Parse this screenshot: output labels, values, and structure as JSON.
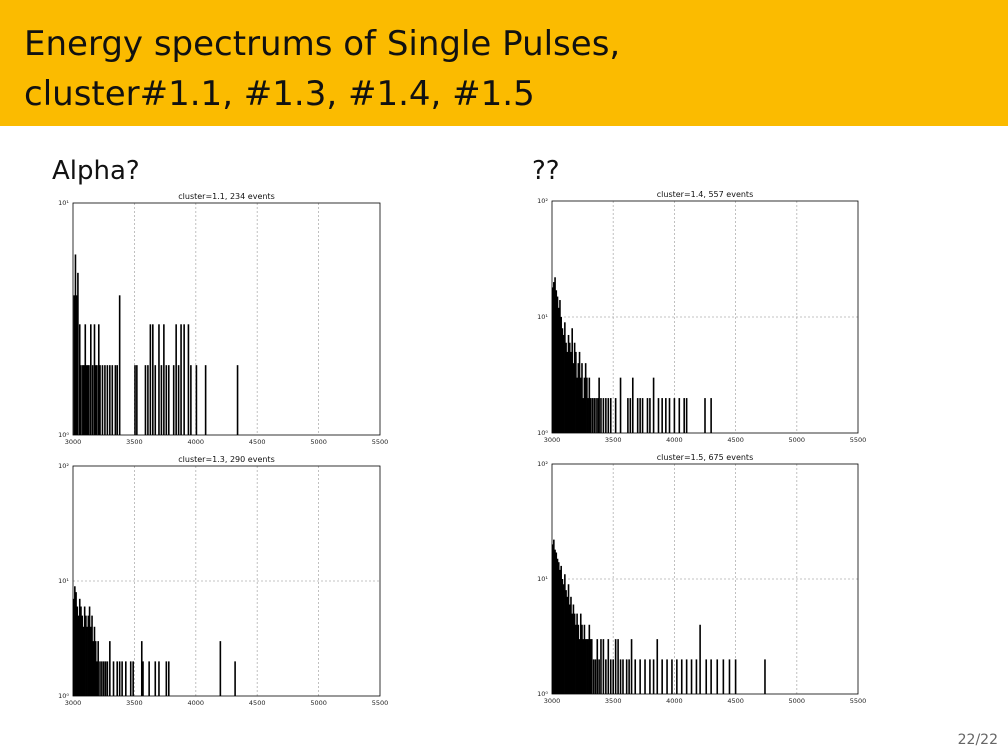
{
  "slide": {
    "title_line1": "Energy spectrums of Single Pulses,",
    "title_line2": "cluster#1.1, #1.3, #1.4, #1.5",
    "label_left": "Alpha?",
    "label_right": "??",
    "page_number": "22/22"
  },
  "colors": {
    "title_bar": "#fbbb00",
    "bars": "#000000",
    "grid": "#b0b0b0"
  },
  "chart_data": [
    {
      "type": "bar",
      "title": "cluster=1.1, 234 events",
      "x_ticks": [
        "3000",
        "3500",
        "4000",
        "4500",
        "5000",
        "5500"
      ],
      "xlim": [
        3000,
        5500
      ],
      "yscale": "log",
      "ylim": [
        1,
        10
      ],
      "y_ticks": [
        "10⁰",
        "10¹"
      ],
      "grid": true,
      "bins": [
        [
          3010,
          4
        ],
        [
          3020,
          6
        ],
        [
          3030,
          4
        ],
        [
          3040,
          5
        ],
        [
          3055,
          3
        ],
        [
          3065,
          2
        ],
        [
          3080,
          2
        ],
        [
          3090,
          2
        ],
        [
          3100,
          3
        ],
        [
          3110,
          2
        ],
        [
          3120,
          2
        ],
        [
          3130,
          2
        ],
        [
          3145,
          3
        ],
        [
          3160,
          2
        ],
        [
          3175,
          3
        ],
        [
          3185,
          2
        ],
        [
          3195,
          2
        ],
        [
          3210,
          3
        ],
        [
          3220,
          2
        ],
        [
          3240,
          2
        ],
        [
          3260,
          2
        ],
        [
          3280,
          2
        ],
        [
          3300,
          2
        ],
        [
          3320,
          2
        ],
        [
          3345,
          2
        ],
        [
          3360,
          2
        ],
        [
          3380,
          4
        ],
        [
          3505,
          2
        ],
        [
          3520,
          2
        ],
        [
          3590,
          2
        ],
        [
          3610,
          2
        ],
        [
          3630,
          3
        ],
        [
          3650,
          3
        ],
        [
          3670,
          2
        ],
        [
          3700,
          3
        ],
        [
          3720,
          2
        ],
        [
          3740,
          3
        ],
        [
          3760,
          2
        ],
        [
          3780,
          2
        ],
        [
          3820,
          2
        ],
        [
          3840,
          3
        ],
        [
          3860,
          2
        ],
        [
          3880,
          3
        ],
        [
          3905,
          3
        ],
        [
          3940,
          3
        ],
        [
          3960,
          2
        ],
        [
          4005,
          2
        ],
        [
          4080,
          2
        ],
        [
          4340,
          2
        ]
      ]
    },
    {
      "type": "bar",
      "title": "cluster=1.4, 557 events",
      "x_ticks": [
        "3000",
        "3500",
        "4000",
        "4500",
        "5000",
        "5500"
      ],
      "xlim": [
        3000,
        5500
      ],
      "yscale": "log",
      "ylim": [
        1,
        100
      ],
      "y_ticks": [
        "10⁰",
        "10¹",
        "10²"
      ],
      "grid": true,
      "bins": [
        [
          3005,
          18
        ],
        [
          3015,
          20
        ],
        [
          3025,
          22
        ],
        [
          3035,
          17
        ],
        [
          3045,
          15
        ],
        [
          3055,
          12
        ],
        [
          3065,
          14
        ],
        [
          3075,
          10
        ],
        [
          3085,
          8
        ],
        [
          3095,
          7
        ],
        [
          3105,
          9
        ],
        [
          3115,
          6
        ],
        [
          3125,
          5
        ],
        [
          3135,
          7
        ],
        [
          3145,
          6
        ],
        [
          3155,
          5
        ],
        [
          3165,
          8
        ],
        [
          3175,
          4
        ],
        [
          3185,
          6
        ],
        [
          3195,
          5
        ],
        [
          3205,
          3
        ],
        [
          3215,
          4
        ],
        [
          3225,
          5
        ],
        [
          3235,
          3
        ],
        [
          3245,
          4
        ],
        [
          3255,
          2
        ],
        [
          3265,
          3
        ],
        [
          3275,
          4
        ],
        [
          3285,
          3
        ],
        [
          3295,
          2
        ],
        [
          3305,
          3
        ],
        [
          3315,
          2
        ],
        [
          3330,
          2
        ],
        [
          3345,
          2
        ],
        [
          3360,
          2
        ],
        [
          3375,
          2
        ],
        [
          3385,
          3
        ],
        [
          3400,
          2
        ],
        [
          3420,
          2
        ],
        [
          3440,
          2
        ],
        [
          3460,
          2
        ],
        [
          3480,
          2
        ],
        [
          3520,
          2
        ],
        [
          3560,
          3
        ],
        [
          3620,
          2
        ],
        [
          3640,
          2
        ],
        [
          3660,
          3
        ],
        [
          3700,
          2
        ],
        [
          3720,
          2
        ],
        [
          3740,
          2
        ],
        [
          3780,
          2
        ],
        [
          3800,
          2
        ],
        [
          3830,
          3
        ],
        [
          3870,
          2
        ],
        [
          3900,
          2
        ],
        [
          3930,
          2
        ],
        [
          3960,
          2
        ],
        [
          4000,
          2
        ],
        [
          4040,
          2
        ],
        [
          4080,
          2
        ],
        [
          4100,
          2
        ],
        [
          4250,
          2
        ],
        [
          4300,
          2
        ]
      ]
    },
    {
      "type": "bar",
      "title": "cluster=1.3, 290 events",
      "x_ticks": [
        "3000",
        "3500",
        "4000",
        "4500",
        "5000",
        "5500"
      ],
      "xlim": [
        3000,
        5500
      ],
      "yscale": "log",
      "ylim": [
        1,
        100
      ],
      "y_ticks": [
        "10⁰",
        "10¹",
        "10²"
      ],
      "grid": true,
      "bins": [
        [
          3005,
          7
        ],
        [
          3015,
          9
        ],
        [
          3025,
          8
        ],
        [
          3035,
          6
        ],
        [
          3045,
          5
        ],
        [
          3055,
          7
        ],
        [
          3065,
          6
        ],
        [
          3075,
          5
        ],
        [
          3085,
          4
        ],
        [
          3095,
          6
        ],
        [
          3105,
          5
        ],
        [
          3115,
          4
        ],
        [
          3125,
          5
        ],
        [
          3135,
          6
        ],
        [
          3145,
          4
        ],
        [
          3155,
          5
        ],
        [
          3165,
          3
        ],
        [
          3175,
          4
        ],
        [
          3185,
          3
        ],
        [
          3195,
          2
        ],
        [
          3205,
          3
        ],
        [
          3220,
          2
        ],
        [
          3235,
          2
        ],
        [
          3250,
          2
        ],
        [
          3265,
          2
        ],
        [
          3280,
          2
        ],
        [
          3300,
          3
        ],
        [
          3330,
          2
        ],
        [
          3360,
          2
        ],
        [
          3380,
          2
        ],
        [
          3400,
          2
        ],
        [
          3430,
          2
        ],
        [
          3470,
          2
        ],
        [
          3490,
          2
        ],
        [
          3560,
          3
        ],
        [
          3570,
          2
        ],
        [
          3620,
          2
        ],
        [
          3670,
          2
        ],
        [
          3700,
          2
        ],
        [
          3760,
          2
        ],
        [
          3780,
          2
        ],
        [
          4200,
          3
        ],
        [
          4320,
          2
        ]
      ]
    },
    {
      "type": "bar",
      "title": "cluster=1.5, 675 events",
      "x_ticks": [
        "3000",
        "3500",
        "4000",
        "4500",
        "5000",
        "5500"
      ],
      "xlim": [
        3000,
        5500
      ],
      "yscale": "log",
      "ylim": [
        1,
        100
      ],
      "y_ticks": [
        "10⁰",
        "10¹",
        "10²"
      ],
      "grid": true,
      "bins": [
        [
          3005,
          20
        ],
        [
          3015,
          22
        ],
        [
          3025,
          18
        ],
        [
          3035,
          17
        ],
        [
          3045,
          15
        ],
        [
          3055,
          14
        ],
        [
          3065,
          12
        ],
        [
          3075,
          13
        ],
        [
          3085,
          10
        ],
        [
          3095,
          9
        ],
        [
          3105,
          11
        ],
        [
          3115,
          8
        ],
        [
          3125,
          7
        ],
        [
          3135,
          9
        ],
        [
          3145,
          6
        ],
        [
          3155,
          7
        ],
        [
          3165,
          5
        ],
        [
          3175,
          6
        ],
        [
          3185,
          5
        ],
        [
          3195,
          4
        ],
        [
          3205,
          5
        ],
        [
          3215,
          4
        ],
        [
          3225,
          3
        ],
        [
          3235,
          5
        ],
        [
          3245,
          4
        ],
        [
          3255,
          3
        ],
        [
          3265,
          4
        ],
        [
          3275,
          3
        ],
        [
          3285,
          3
        ],
        [
          3295,
          3
        ],
        [
          3305,
          4
        ],
        [
          3315,
          3
        ],
        [
          3325,
          3
        ],
        [
          3340,
          2
        ],
        [
          3355,
          2
        ],
        [
          3370,
          3
        ],
        [
          3385,
          2
        ],
        [
          3400,
          3
        ],
        [
          3420,
          3
        ],
        [
          3440,
          2
        ],
        [
          3460,
          3
        ],
        [
          3480,
          2
        ],
        [
          3500,
          2
        ],
        [
          3520,
          3
        ],
        [
          3540,
          3
        ],
        [
          3560,
          2
        ],
        [
          3580,
          2
        ],
        [
          3610,
          2
        ],
        [
          3630,
          2
        ],
        [
          3650,
          3
        ],
        [
          3680,
          2
        ],
        [
          3720,
          2
        ],
        [
          3760,
          2
        ],
        [
          3800,
          2
        ],
        [
          3830,
          2
        ],
        [
          3860,
          3
        ],
        [
          3900,
          2
        ],
        [
          3940,
          2
        ],
        [
          3980,
          2
        ],
        [
          4020,
          2
        ],
        [
          4060,
          2
        ],
        [
          4100,
          2
        ],
        [
          4140,
          2
        ],
        [
          4180,
          2
        ],
        [
          4210,
          4
        ],
        [
          4260,
          2
        ],
        [
          4300,
          2
        ],
        [
          4350,
          2
        ],
        [
          4400,
          2
        ],
        [
          4450,
          2
        ],
        [
          4500,
          2
        ],
        [
          4740,
          2
        ]
      ]
    }
  ]
}
